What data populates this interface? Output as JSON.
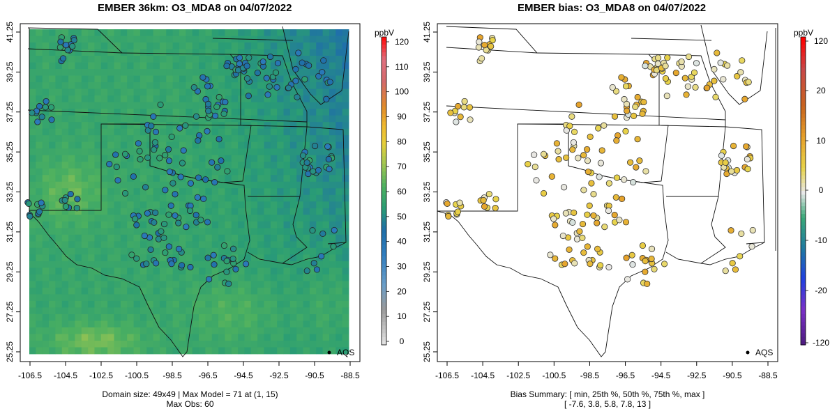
{
  "left_panel": {
    "title": "EMBER 36km: O3_MDA8 on 04/07/2022",
    "footer_line1": "Domain size: 49x49 | Max Model = 71 at (1, 15)",
    "footer_line2": "Max Obs: 60",
    "legend_label": "AQS",
    "colorbar": {
      "units": "ppbV",
      "ticks": [
        "120",
        "110",
        "100",
        "90",
        "80",
        "70",
        "60",
        "50",
        "40",
        "30",
        "20",
        "10",
        "0"
      ],
      "range": [
        -5,
        122
      ]
    }
  },
  "right_panel": {
    "title": "EMBER bias: O3_MDA8 on 04/07/2022",
    "footer_line1": "Bias Summary: [ min, 25th %, 50th %, 75th %, max ]",
    "footer_line2": "[ -7.6,   3.8,   5.8,   7.8,   13 ]",
    "legend_label": "AQS",
    "colorbar": {
      "units": "ppbV",
      "ticks": [
        "120",
        "20",
        "10",
        "0",
        "-10",
        "-20",
        "-120"
      ]
    }
  },
  "axes": {
    "x_ticks": [
      "-106.5",
      "-104.5",
      "-102.5",
      "-100.5",
      "-98.5",
      "-96.5",
      "-94.5",
      "-92.5",
      "-90.5",
      "-88.5"
    ],
    "y_ticks": [
      "41.25",
      "39.25",
      "37.25",
      "35.25",
      "33.25",
      "31.25",
      "29.25",
      "27.25",
      "25.25"
    ],
    "lon_range": [
      -107.2,
      -88.0
    ],
    "lat_range": [
      25.25,
      41.25
    ]
  },
  "colors": {
    "model_field_dominant": "#2a9d74",
    "obs_blue": "#2d7fb8",
    "bias_positive": "#f0c030",
    "bias_high": "#d9861a"
  }
}
